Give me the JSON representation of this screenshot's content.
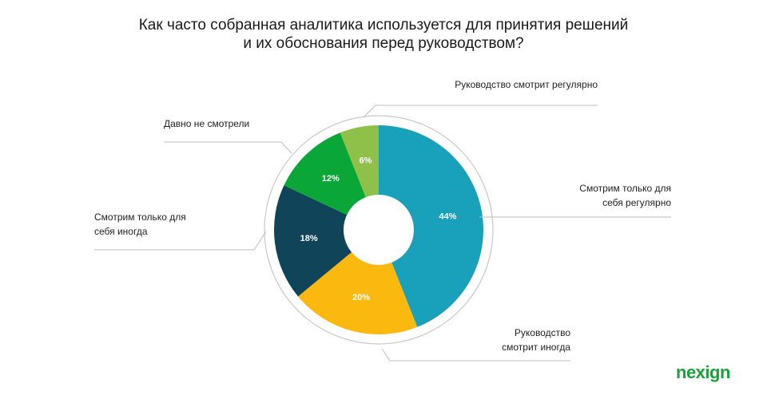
{
  "chart_data": {
    "type": "donut",
    "title": "Как часто собранная аналитика используется для принятия решений и их обоснования перед руководством?",
    "categories": [
      "Смотрим только для себя регулярно",
      "Руководство смотрит иногда",
      "Смотрим только для себя иногда",
      "Давно не смотрели",
      "Руководство смотрит регулярно"
    ],
    "values": [
      44,
      20,
      18,
      12,
      6
    ],
    "value_labels": [
      "44%",
      "20%",
      "18%",
      "12%",
      "6%"
    ],
    "colors": [
      "#19a0bb",
      "#fbb80f",
      "#0f4459",
      "#0aa638",
      "#8fc14a"
    ]
  },
  "brand": "nexign"
}
